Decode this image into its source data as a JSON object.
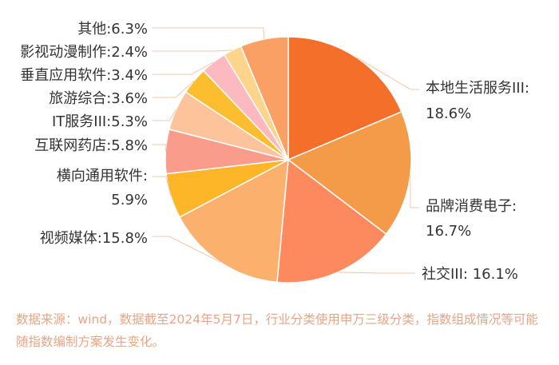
{
  "chart_data": {
    "type": "pie",
    "title": "",
    "slices": [
      {
        "label": "本地生活服务III:",
        "value_label": "18.6%",
        "value": 18.6,
        "color": "#f36f2a"
      },
      {
        "label": "品牌消费电子:",
        "value_label": "16.7%",
        "value": 16.7,
        "color": "#f39b49"
      },
      {
        "label": "社交III: 16.1%",
        "value_label": "",
        "value": 16.1,
        "color": "#fd8a5e"
      },
      {
        "label": "视频媒体:15.8%",
        "value_label": "",
        "value": 15.8,
        "color": "#fbb06d"
      },
      {
        "label": "横向通用软件:",
        "value_label": "5.9%",
        "value": 5.9,
        "color": "#fdb628"
      },
      {
        "label": "互联网药店:5.8%",
        "value_label": "",
        "value": 5.8,
        "color": "#fa9c8c"
      },
      {
        "label": "IT服务III:5.3%",
        "value_label": "",
        "value": 5.3,
        "color": "#fdc49c"
      },
      {
        "label": "旅游综合:3.6%",
        "value_label": "",
        "value": 3.6,
        "color": "#fcbd2f"
      },
      {
        "label": "垂直应用软件:3.4%",
        "value_label": "",
        "value": 3.4,
        "color": "#fdb9c0"
      },
      {
        "label": "影视动漫制作:2.4%",
        "value_label": "",
        "value": 2.4,
        "color": "#fdd48c"
      },
      {
        "label": "其他:6.3%",
        "value_label": "",
        "value": 6.3,
        "color": "#fba065"
      }
    ]
  },
  "footnote": "数据来源：wind，数据截至2024年5月7日，行业分类使用申万三级分类，指数组成情况等可能随指数编制方案发生变化。"
}
